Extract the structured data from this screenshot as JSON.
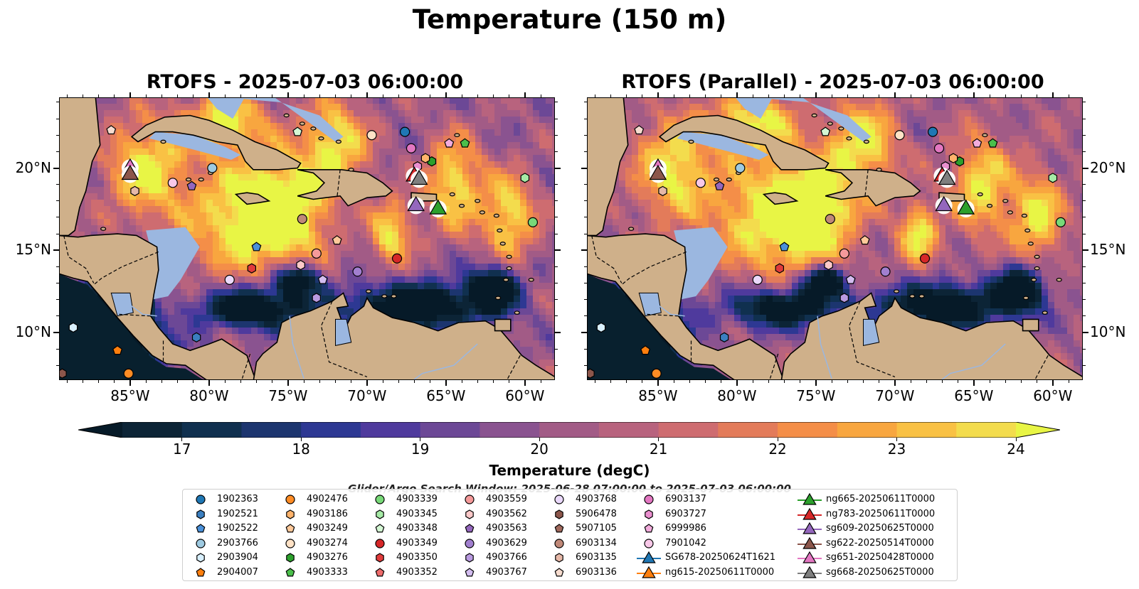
{
  "suptitle": "Temperature (150 m)",
  "panels": [
    {
      "title": "RTOFS - 2025-07-03 06:00:00"
    },
    {
      "title": "RTOFS (Parallel) - 2025-07-03 06:00:00"
    }
  ],
  "colorbar": {
    "label": "Temperature (degC)",
    "ticks": [
      "17",
      "18",
      "19",
      "20",
      "21",
      "22",
      "23",
      "24"
    ],
    "colors": [
      "#0c2436",
      "#10304f",
      "#1c356f",
      "#2d3893",
      "#4f3a9d",
      "#6c4896",
      "#8a5390",
      "#a25b86",
      "#b8637e",
      "#ce6c70",
      "#e37b5a",
      "#f48e48",
      "#f8a63f",
      "#f9c144",
      "#f3dc4d"
    ],
    "extend_low": "#061a28",
    "extend_high": "#e8f545"
  },
  "legend_title": "Glider/Argo Search Window: 2025-06-28 07:00:00 to 2025-07-03 06:00:00",
  "legend": [
    {
      "label": "1902363",
      "marker": "circle",
      "color": "#1f77b4"
    },
    {
      "label": "1902521",
      "marker": "hexagon",
      "color": "#3b7fc0"
    },
    {
      "label": "1902522",
      "marker": "pentagon",
      "color": "#4a90d9"
    },
    {
      "label": "2903766",
      "marker": "circle",
      "color": "#9ecae1"
    },
    {
      "label": "2903904",
      "marker": "hexagon",
      "color": "#d8f0ff"
    },
    {
      "label": "2904007",
      "marker": "pentagon",
      "color": "#ff7f0e"
    },
    {
      "label": "4902476",
      "marker": "circle",
      "color": "#ff8c24"
    },
    {
      "label": "4903186",
      "marker": "hexagon",
      "color": "#ffb36b"
    },
    {
      "label": "4903249",
      "marker": "pentagon",
      "color": "#ffc99a"
    },
    {
      "label": "4903274",
      "marker": "circle",
      "color": "#ffe2c6"
    },
    {
      "label": "4903276",
      "marker": "hexagon",
      "color": "#2ca02c"
    },
    {
      "label": "4903333",
      "marker": "pentagon",
      "color": "#4bbf4b"
    },
    {
      "label": "4903339",
      "marker": "circle",
      "color": "#78d978"
    },
    {
      "label": "4903345",
      "marker": "hexagon",
      "color": "#a6eaa6"
    },
    {
      "label": "4903348",
      "marker": "pentagon",
      "color": "#d4f7d4"
    },
    {
      "label": "4903349",
      "marker": "circle",
      "color": "#d62728"
    },
    {
      "label": "4903350",
      "marker": "hexagon",
      "color": "#e03b3b"
    },
    {
      "label": "4903352",
      "marker": "pentagon",
      "color": "#ee6b6b"
    },
    {
      "label": "4903559",
      "marker": "circle",
      "color": "#f59a9a"
    },
    {
      "label": "4903562",
      "marker": "hexagon",
      "color": "#fcc9c9"
    },
    {
      "label": "4903563",
      "marker": "pentagon",
      "color": "#9467bd"
    },
    {
      "label": "4903629",
      "marker": "circle",
      "color": "#a17fcf"
    },
    {
      "label": "4903766",
      "marker": "hexagon",
      "color": "#b99ae0"
    },
    {
      "label": "4903767",
      "marker": "pentagon",
      "color": "#d3bdf0"
    },
    {
      "label": "4903768",
      "marker": "circle",
      "color": "#ead9fb"
    },
    {
      "label": "5906478",
      "marker": "hexagon",
      "color": "#8c564b"
    },
    {
      "label": "5907105",
      "marker": "pentagon",
      "color": "#a0695d"
    },
    {
      "label": "6903134",
      "marker": "circle",
      "color": "#c08878"
    },
    {
      "label": "6903135",
      "marker": "hexagon",
      "color": "#e6b8a8"
    },
    {
      "label": "6903136",
      "marker": "pentagon",
      "color": "#f7dccf"
    },
    {
      "label": "6903137",
      "marker": "circle",
      "color": "#e377c2"
    },
    {
      "label": "6903727",
      "marker": "hexagon",
      "color": "#ea8fcf"
    },
    {
      "label": "6999986",
      "marker": "pentagon",
      "color": "#f2acdc"
    },
    {
      "label": "7901042",
      "marker": "circle",
      "color": "#f8c8e8"
    },
    {
      "label": "SG678-20250624T1621",
      "marker": "triangle",
      "color": "#1f77b4"
    },
    {
      "label": "ng615-20250611T0000",
      "marker": "triangle",
      "color": "#ff7f0e"
    },
    {
      "label": "ng665-20250611T0000",
      "marker": "triangle",
      "color": "#2ca02c"
    },
    {
      "label": "ng783-20250611T0000",
      "marker": "triangle",
      "color": "#d62728"
    },
    {
      "label": "sg609-20250625T0000",
      "marker": "triangle",
      "color": "#9467bd"
    },
    {
      "label": "sg622-20250514T0000",
      "marker": "triangle",
      "color": "#8c564b"
    },
    {
      "label": "sg651-20250428T0000",
      "marker": "triangle",
      "color": "#e377c2"
    },
    {
      "label": "sg668-20250625T0000",
      "marker": "triangle",
      "color": "#7f7f7f"
    }
  ],
  "chart_data": [
    {
      "type": "heatmap",
      "title": "RTOFS - 2025-07-03 06:00:00",
      "xlabel": "",
      "ylabel": "",
      "xticks": [
        "85°W",
        "80°W",
        "75°W",
        "70°W",
        "65°W",
        "60°W"
      ],
      "yticks": [
        "10°N",
        "15°N",
        "20°N"
      ],
      "xlim": [
        -89.5,
        -58.1
      ],
      "ylim": [
        7.1,
        24.3
      ],
      "variable": "Temperature (150 m)",
      "units": "degC",
      "color_range": [
        16.5,
        24.5
      ]
    },
    {
      "type": "heatmap",
      "title": "RTOFS (Parallel) - 2025-07-03 06:00:00",
      "xlabel": "",
      "ylabel": "",
      "xticks": [
        "85°W",
        "80°W",
        "75°W",
        "70°W",
        "65°W",
        "60°W"
      ],
      "yticks": [
        "10°N",
        "15°N",
        "20°N"
      ],
      "xlim": [
        -89.5,
        -58.1
      ],
      "ylim": [
        7.1,
        24.3
      ],
      "variable": "Temperature (150 m)",
      "units": "degC",
      "color_range": [
        16.5,
        24.5
      ]
    }
  ],
  "observations": [
    {
      "id": "1902363",
      "lon": -67.6,
      "lat": 22.2
    },
    {
      "id": "2903766",
      "lon": -79.8,
      "lat": 20.0
    },
    {
      "id": "4903274",
      "lon": -69.7,
      "lat": 22.0
    },
    {
      "id": "4903349",
      "lon": -68.1,
      "lat": 14.5
    },
    {
      "id": "4903339",
      "lon": -59.5,
      "lat": 16.7
    },
    {
      "id": "4903345",
      "lon": -60.0,
      "lat": 19.4
    },
    {
      "id": "4903333",
      "lon": -63.8,
      "lat": 21.5
    },
    {
      "id": "4903276",
      "lon": -65.9,
      "lat": 20.4
    },
    {
      "id": "4903186",
      "lon": -66.3,
      "lat": 20.6
    },
    {
      "id": "4903348",
      "lon": -74.4,
      "lat": 22.2
    },
    {
      "id": "1902522",
      "lon": -77.0,
      "lat": 15.2
    },
    {
      "id": "4903350",
      "lon": -77.3,
      "lat": 13.9
    },
    {
      "id": "4903559",
      "lon": -73.2,
      "lat": 14.8
    },
    {
      "id": "4903249",
      "lon": -71.9,
      "lat": 15.6
    },
    {
      "id": "4903562",
      "lon": -74.2,
      "lat": 14.1
    },
    {
      "id": "4903629",
      "lon": -70.6,
      "lat": 13.7
    },
    {
      "id": "4903767",
      "lon": -72.8,
      "lat": 13.2
    },
    {
      "id": "4903768",
      "lon": -78.7,
      "lat": 13.2
    },
    {
      "id": "6903134",
      "lon": -74.1,
      "lat": 16.9
    },
    {
      "id": "4903563",
      "lon": -81.1,
      "lat": 18.9
    },
    {
      "id": "6999986",
      "lon": -64.8,
      "lat": 21.5
    },
    {
      "id": "6903137",
      "lon": -67.2,
      "lat": 21.2
    },
    {
      "id": "6903727",
      "lon": -66.8,
      "lat": 20.1
    },
    {
      "id": "6903136",
      "lon": -86.2,
      "lat": 22.3
    },
    {
      "id": "7901042",
      "lon": -82.3,
      "lat": 19.1
    },
    {
      "id": "6903135",
      "lon": -84.7,
      "lat": 18.6
    },
    {
      "id": "4903766",
      "lon": -73.2,
      "lat": 12.1
    },
    {
      "id": "1902521",
      "lon": -80.8,
      "lat": 9.7
    },
    {
      "id": "2903904",
      "lon": -88.6,
      "lat": 10.3
    },
    {
      "id": "2904007",
      "lon": -85.8,
      "lat": 8.9
    },
    {
      "id": "4902476",
      "lon": -85.1,
      "lat": 7.5
    },
    {
      "id": "5906478",
      "lon": -89.3,
      "lat": 7.5
    }
  ],
  "gliders": [
    {
      "id": "sg651-20250428T0000",
      "lon": -85.0,
      "lat": 20.1
    },
    {
      "id": "sg622-20250514T0000",
      "lon": -85.0,
      "lat": 19.7
    },
    {
      "id": "ng783-20250611T0000",
      "lon": -67.0,
      "lat": 19.6
    },
    {
      "id": "sg668-20250625T0000",
      "lon": -66.7,
      "lat": 19.4
    },
    {
      "id": "sg609-20250625T0000",
      "lon": -66.9,
      "lat": 17.8
    },
    {
      "id": "ng665-20250611T0000",
      "lon": -65.5,
      "lat": 17.6
    }
  ]
}
